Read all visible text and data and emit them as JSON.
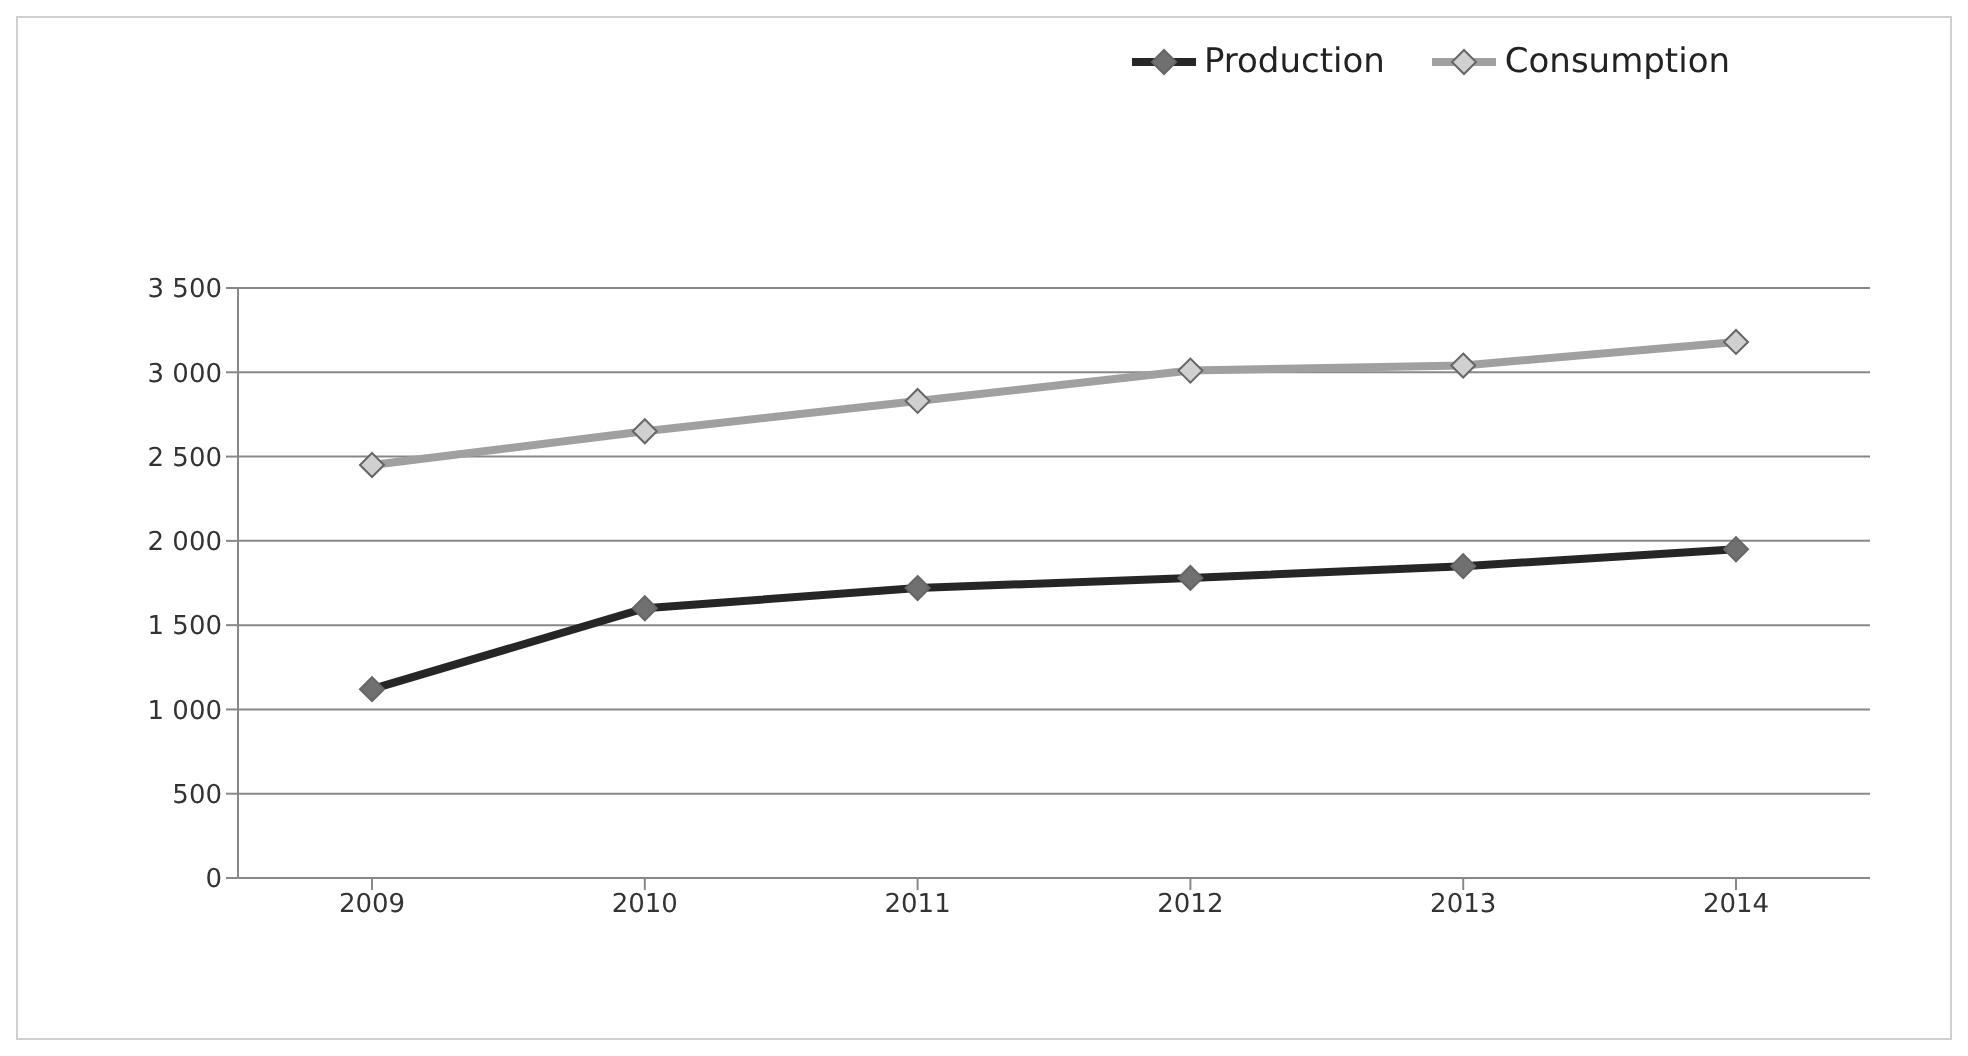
{
  "chart_data": {
    "type": "line",
    "categories": [
      "2009",
      "2010",
      "2011",
      "2012",
      "2013",
      "2014"
    ],
    "series": [
      {
        "name": "Production",
        "color": "#262626",
        "values": [
          1120,
          1600,
          1720,
          1780,
          1850,
          1950
        ]
      },
      {
        "name": "Consumption",
        "color": "#a0a0a0",
        "values": [
          2450,
          2650,
          2830,
          3010,
          3040,
          3180
        ]
      }
    ],
    "ylim": [
      0,
      3500
    ],
    "yticks": [
      0,
      500,
      {
        "value": 1000,
        "label": "1 000"
      },
      {
        "value": 1500,
        "label": "1 500"
      },
      {
        "value": 2000,
        "label": "2 000"
      },
      {
        "value": 2500,
        "label": "2 500"
      },
      {
        "value": 3000,
        "label": "3 000"
      },
      {
        "value": 3500,
        "label": "3 500"
      }
    ],
    "grid": "y",
    "legend": "top right",
    "marker": "diamond",
    "line_style": "solid"
  }
}
